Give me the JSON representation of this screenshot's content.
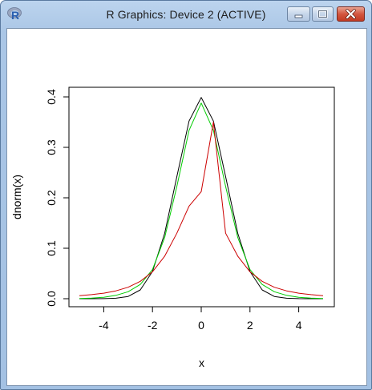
{
  "window": {
    "title": "R Graphics: Device 2 (ACTIVE)",
    "icon": "r-logo-icon",
    "controls": [
      "minimize-icon",
      "maximize-icon",
      "close-icon"
    ]
  },
  "chart_data": {
    "type": "line",
    "title": "",
    "xlabel": "x",
    "ylabel": "dnorm(x)",
    "xlim": [
      -5,
      5
    ],
    "ylim": [
      0,
      0.4
    ],
    "x_ticks": [
      -4,
      -2,
      0,
      2,
      4
    ],
    "x_tick_labels": [
      "-4",
      "-2",
      "0",
      "2",
      "4"
    ],
    "y_ticks": [
      0,
      0.1,
      0.2,
      0.3,
      0.4
    ],
    "y_tick_labels": [
      "0.0",
      "0.1",
      "0.2",
      "0.3",
      "0.4"
    ],
    "grid": false,
    "legend": "none",
    "x": [
      -5,
      -4.5,
      -4,
      -3.5,
      -3,
      -2.5,
      -2,
      -1.5,
      -1,
      -0.5,
      0,
      0.5,
      1,
      1.5,
      2,
      2.5,
      3,
      3.5,
      4,
      4.5,
      5
    ],
    "series": [
      {
        "color": "#000000",
        "values": [
          0.0,
          0.0,
          0.0001,
          0.0009,
          0.0044,
          0.0175,
          0.054,
          0.1295,
          0.242,
          0.3521,
          0.3989,
          0.3521,
          0.242,
          0.1295,
          0.054,
          0.0175,
          0.0044,
          0.0009,
          0.0001,
          0.0,
          0.0
        ]
      },
      {
        "color": "#00cc00",
        "values": [
          0.0004,
          0.0011,
          0.0029,
          0.0066,
          0.0138,
          0.0282,
          0.0578,
          0.1212,
          0.2227,
          0.3336,
          0.3877,
          0.3336,
          0.2227,
          0.1212,
          0.0578,
          0.0282,
          0.0138,
          0.0066,
          0.0029,
          0.0011,
          0.0004
        ]
      },
      {
        "color": "#cc0000",
        "values": [
          0.0061,
          0.0081,
          0.011,
          0.0156,
          0.0227,
          0.0344,
          0.0534,
          0.0843,
          0.1299,
          0.1835,
          0.2122,
          0.35,
          0.1299,
          0.0843,
          0.0534,
          0.0344,
          0.0227,
          0.0156,
          0.011,
          0.0081,
          0.0061
        ]
      }
    ]
  }
}
